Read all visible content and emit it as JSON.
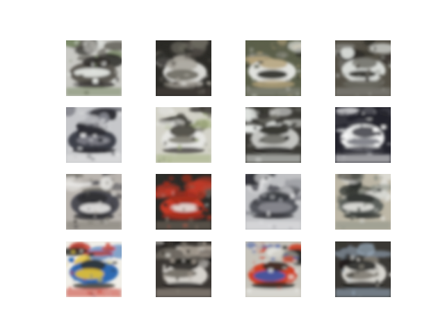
{
  "figure": {
    "background": "#ffffff",
    "grid": {
      "rows": 4,
      "cols": 4
    },
    "samples": [
      {
        "subject": "car",
        "palette": [
          "#c9c9c4",
          "#5d5a52",
          "#e9ece8",
          "#7b8a68",
          "#2e2c29"
        ]
      },
      {
        "subject": "car",
        "palette": [
          "#2b2a26",
          "#d8d8d4",
          "#6d6a60",
          "#4a4640",
          "#a7a39a"
        ]
      },
      {
        "subject": "car",
        "palette": [
          "#5b5f4a",
          "#e1e2de",
          "#2a2c27",
          "#8f8f86",
          "#b4a27b"
        ]
      },
      {
        "subject": "car",
        "palette": [
          "#545046",
          "#d9dcd8",
          "#2c2a26",
          "#8e8e88",
          "#6b6a63"
        ]
      },
      {
        "subject": "car",
        "palette": [
          "#c6c7ca",
          "#3d3f48",
          "#7f8088",
          "#e5e5e6",
          "#2a2b31"
        ]
      },
      {
        "subject": "car",
        "palette": [
          "#d3d2c8",
          "#e6e6e3",
          "#7d7b6f",
          "#a3b07e",
          "#3c3a34"
        ]
      },
      {
        "subject": "car",
        "palette": [
          "#3b3a35",
          "#c4c5c1",
          "#6e6d66",
          "#ebeeeb",
          "#1e1d1a"
        ]
      },
      {
        "subject": "car",
        "palette": [
          "#23232c",
          "#e9eaea",
          "#7a7b83",
          "#ffffff",
          "#3f3f47"
        ]
      },
      {
        "subject": "car",
        "palette": [
          "#b9b4ae",
          "#4b4b52",
          "#e7e6e3",
          "#7b7870",
          "#2c2b30"
        ]
      },
      {
        "subject": "car",
        "palette": [
          "#2b2a27",
          "#c63a27",
          "#e0dfdc",
          "#7a6e62",
          "#9e2d1e"
        ]
      },
      {
        "subject": "car",
        "palette": [
          "#bfc0c3",
          "#55565d",
          "#898a90",
          "#e6e6e7",
          "#303136"
        ]
      },
      {
        "subject": "car",
        "palette": [
          "#bdb7a6",
          "#5c605b",
          "#e3e3de",
          "#8a8f85",
          "#2f322f"
        ]
      },
      {
        "subject": "car",
        "palette": [
          "#f1efe8",
          "#2e6ab3",
          "#e3c133",
          "#c73d2f",
          "#2f2e2a"
        ]
      },
      {
        "subject": "car",
        "palette": [
          "#3a3632",
          "#d5d2cc",
          "#6f6a62",
          "#a89f94",
          "#1e1c1a"
        ]
      },
      {
        "subject": "car",
        "palette": [
          "#c6c3ba",
          "#cf4326",
          "#3a57a8",
          "#e5e5e1",
          "#2b2a28"
        ]
      },
      {
        "subject": "car",
        "palette": [
          "#3a3834",
          "#d7d5cf",
          "#7e7a70",
          "#a0b3c6",
          "#1f1e1c"
        ]
      }
    ]
  }
}
